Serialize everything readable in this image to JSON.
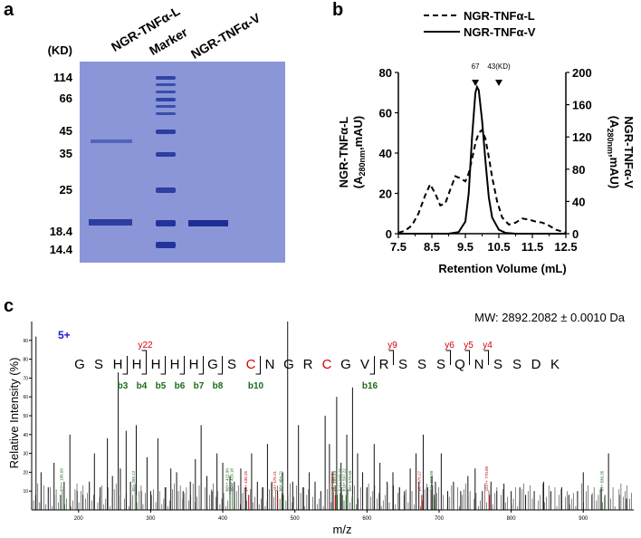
{
  "panels": {
    "a": "a",
    "b": "b",
    "c": "c"
  },
  "gel": {
    "unit_label": "(KD)",
    "lane_titles": [
      "NGR-TNFα-L",
      "Marker",
      "NGR-TNFα-V"
    ],
    "markers": [
      "114",
      "66",
      "45",
      "35",
      "25",
      "18.4",
      "14.4"
    ],
    "colors": {
      "background": "#8a96d8",
      "band": "#1c2f93"
    }
  },
  "chart_data": [
    {
      "type": "line",
      "title": "",
      "legend": [
        "NGR-TNFα-L",
        "NGR-TNFα-V"
      ],
      "legend_position": "top",
      "xlabel": "Retention Volume (mL)",
      "ylabel_left": "NGR-TNFα-L (A280nm,mAU)",
      "ylabel_left_parts": [
        "NGR-TNFα-L",
        "(A",
        "280nm",
        ",mAU)"
      ],
      "ylabel_right": "NGR-TNFα-V (A280nm,mAU)",
      "ylabel_right_parts": [
        "NGR-TNFα-V",
        "(A",
        "280nm",
        ",mAU)"
      ],
      "xlim": [
        7.5,
        12.5
      ],
      "ylim_left": [
        0,
        80
      ],
      "ylim_right": [
        0,
        200
      ],
      "x_ticks": [
        "7.5",
        "8.5",
        "9.5",
        "10.5",
        "11.5",
        "12.5"
      ],
      "x_ticks_minor": [
        "8.0",
        "9.0",
        "10.0",
        "11.0",
        "12.0"
      ],
      "y_ticks_left": [
        "0",
        "20",
        "40",
        "60",
        "80"
      ],
      "y_ticks_right": [
        "0",
        "40",
        "80",
        "120",
        "160",
        "200"
      ],
      "markers": [
        {
          "label": "67",
          "x": 9.8
        },
        {
          "label": "43(KD)",
          "x": 10.5
        }
      ],
      "series": [
        {
          "name": "NGR-TNFα-L",
          "style": "dashed",
          "axis": "left",
          "x": [
            7.5,
            7.7,
            7.9,
            8.1,
            8.3,
            8.45,
            8.6,
            8.75,
            8.9,
            9.05,
            9.2,
            9.35,
            9.5,
            9.6,
            9.7,
            9.8,
            9.9,
            10.0,
            10.1,
            10.2,
            10.3,
            10.45,
            10.6,
            10.8,
            11.0,
            11.2,
            11.4,
            11.6,
            11.8,
            12.0,
            12.2,
            12.5
          ],
          "y": [
            0.5,
            1.5,
            4,
            10,
            19,
            24.5,
            20,
            14,
            15,
            22,
            28.5,
            27.5,
            26,
            30,
            37,
            45,
            50,
            51.5,
            47,
            38,
            28,
            16,
            8,
            4.5,
            5.5,
            7.5,
            7,
            6,
            5.5,
            4,
            2,
            0.5
          ]
        },
        {
          "name": "NGR-TNFα-V",
          "style": "solid",
          "axis": "right",
          "x": [
            7.5,
            8.5,
            9.0,
            9.3,
            9.5,
            9.6,
            9.7,
            9.8,
            9.85,
            9.9,
            10.0,
            10.1,
            10.2,
            10.3,
            10.5,
            10.7,
            11.0,
            12.5
          ],
          "y": [
            0,
            0,
            0,
            2,
            15,
            50,
            120,
            175,
            182,
            178,
            140,
            90,
            45,
            20,
            5,
            1,
            0,
            0
          ]
        }
      ]
    },
    {
      "type": "bar",
      "title": "",
      "mw_text": "MW: 2892.2082 ± 0.0010 Da",
      "charge": "5+",
      "xlabel": "m/z",
      "ylabel": "Relative Intensity (%)",
      "xlim": [
        135,
        970
      ],
      "ylim": [
        0,
        100
      ],
      "x_ticks": [
        "200",
        "300",
        "400",
        "500",
        "600",
        "700",
        "800",
        "900"
      ],
      "y_ticks": [
        "10",
        "20",
        "30",
        "40",
        "50",
        "60",
        "70",
        "80",
        "90"
      ],
      "sequence": [
        "G",
        "S",
        "H",
        "H",
        "H",
        "H",
        "H",
        "G",
        "S",
        "C",
        "N",
        "G",
        "R",
        "C",
        "G",
        "V",
        "R",
        "S",
        "S",
        "S",
        "Q",
        "N",
        "S",
        "S",
        "D",
        "K"
      ],
      "red_residues": [
        9,
        13
      ],
      "y_ions": [
        {
          "label": "y22",
          "after": 3
        },
        {
          "label": "y9",
          "after": 16
        },
        {
          "label": "y6",
          "after": 19
        },
        {
          "label": "y5",
          "after": 20
        },
        {
          "label": "y4",
          "after": 21
        }
      ],
      "b_ions": [
        {
          "label": "b3",
          "after": 2
        },
        {
          "label": "b4",
          "after": 3
        },
        {
          "label": "b5",
          "after": 4
        },
        {
          "label": "b6",
          "after": 5
        },
        {
          "label": "b7",
          "after": 6
        },
        {
          "label": "b8",
          "after": 7
        },
        {
          "label": "b10",
          "after": 9
        },
        {
          "label": "b16",
          "after": 15
        }
      ],
      "peaks": {
        "x": [
          141,
          148,
          158,
          166,
          175,
          180,
          188,
          198,
          206,
          215,
          222,
          230,
          240,
          247,
          255,
          258,
          266,
          272,
          280,
          287,
          295,
          300,
          310,
          320,
          328,
          336,
          345,
          355,
          362,
          370,
          378,
          385,
          392,
          400,
          410,
          416,
          425,
          432,
          440,
          448,
          455,
          462,
          468,
          476,
          483,
          490,
          497,
          505,
          512,
          520,
          528,
          536,
          542,
          548,
          552,
          558,
          564,
          572,
          580,
          587,
          594,
          600,
          610,
          618,
          628,
          636,
          645,
          652,
          660,
          668,
          672,
          678,
          684,
          690,
          695,
          703,
          712,
          720,
          730,
          740,
          750,
          760,
          772,
          780,
          790,
          800,
          812,
          820,
          832,
          845,
          855,
          870,
          880,
          892,
          900,
          912,
          925,
          935,
          950,
          960
        ],
        "y": [
          92,
          20,
          12,
          25,
          8,
          15,
          40,
          10,
          8,
          15,
          30,
          12,
          38,
          18,
          73,
          22,
          42,
          15,
          45,
          10,
          28,
          10,
          38,
          12,
          22,
          20,
          10,
          15,
          27,
          45,
          18,
          10,
          30,
          25,
          18,
          15,
          22,
          12,
          30,
          15,
          12,
          35,
          15,
          10,
          20,
          100,
          15,
          45,
          12,
          20,
          15,
          10,
          50,
          35,
          20,
          60,
          25,
          40,
          65,
          30,
          20,
          12,
          35,
          25,
          15,
          20,
          12,
          10,
          22,
          30,
          15,
          40,
          12,
          18,
          15,
          30,
          10,
          15,
          10,
          18,
          22,
          10,
          15,
          10,
          14,
          10,
          12,
          8,
          10,
          15,
          10,
          12,
          8,
          10,
          20,
          8,
          12,
          30,
          8,
          6
        ]
      },
      "annotations": [
        {
          "text": "b3++ 185.09",
          "color": "green",
          "x": 180
        },
        {
          "text": "b5+ 285.12",
          "color": "green",
          "x": 280
        },
        {
          "text": "b8++ 415.90",
          "color": "green",
          "x": 410
        },
        {
          "text": "b5++ 419.18",
          "color": "green",
          "x": 416
        },
        {
          "text": "y5+ 436.25",
          "color": "red",
          "x": 436
        },
        {
          "text": "y4+ 476.21",
          "color": "red",
          "x": 476
        },
        {
          "text": "b8+ 484.21",
          "color": "green",
          "x": 484
        },
        {
          "text": "y9+ 556.26",
          "color": "red",
          "x": 556
        },
        {
          "text": "y9+ 559.24",
          "color": "green",
          "x": 559
        },
        {
          "text": "b16+ 560.24",
          "color": "green",
          "x": 566
        },
        {
          "text": "b10+ 567.22",
          "color": "green",
          "x": 572
        },
        {
          "text": "b6+ 579.60",
          "color": "green",
          "x": 580
        },
        {
          "text": "y6+ 676.27",
          "color": "red",
          "x": 676
        },
        {
          "text": "b7+ 693.60",
          "color": "green",
          "x": 693
        },
        {
          "text": "y22++ 770.80",
          "color": "red",
          "x": 770
        },
        {
          "text": "b7+ 830.35",
          "color": "green",
          "x": 930
        }
      ]
    }
  ]
}
